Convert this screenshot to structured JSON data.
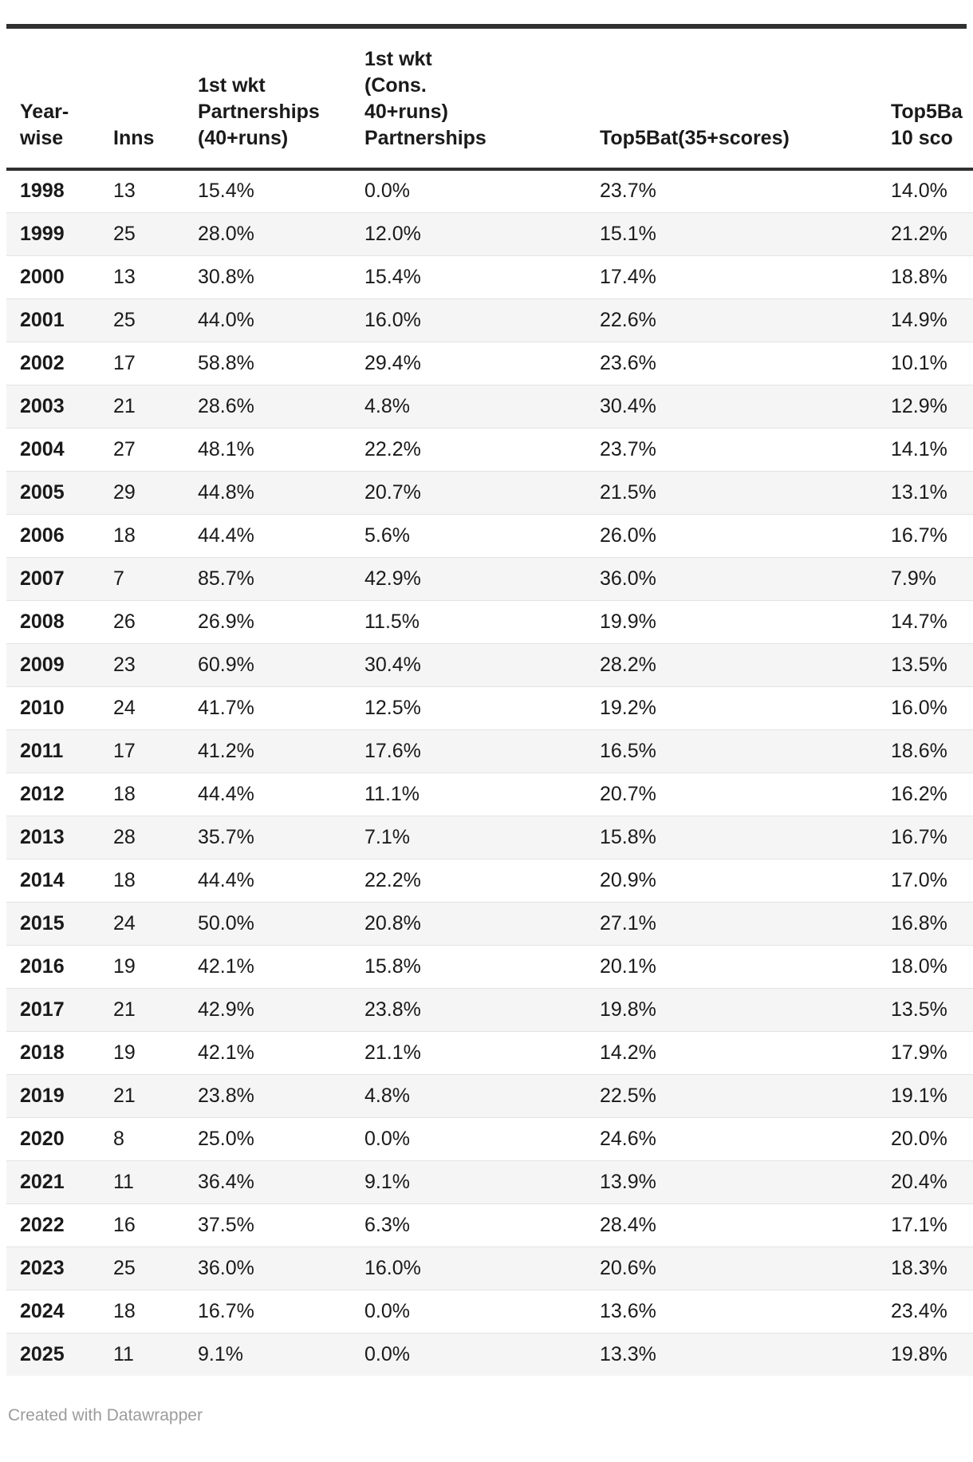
{
  "chart_data": {
    "type": "table",
    "title": "",
    "columns": [
      {
        "key": "year",
        "label": "Year-\nwise"
      },
      {
        "key": "inns",
        "label": "Inns"
      },
      {
        "key": "p40",
        "label": "1st wkt\nPartnerships\n(40+runs)"
      },
      {
        "key": "cons40",
        "label": "1st wkt\n(Cons.\n40+runs)\nPartnerships"
      },
      {
        "key": "top5bat35",
        "label": "Top5Bat(35+scores)"
      },
      {
        "key": "top5bat10",
        "label": "Top5Ba\n10 sco"
      }
    ],
    "rows": [
      {
        "year": "1998",
        "inns": "13",
        "p40": "15.4%",
        "cons40": "0.0%",
        "top5bat35": "23.7%",
        "top5bat10": "14.0%"
      },
      {
        "year": "1999",
        "inns": "25",
        "p40": "28.0%",
        "cons40": "12.0%",
        "top5bat35": "15.1%",
        "top5bat10": "21.2%"
      },
      {
        "year": "2000",
        "inns": "13",
        "p40": "30.8%",
        "cons40": "15.4%",
        "top5bat35": "17.4%",
        "top5bat10": "18.8%"
      },
      {
        "year": "2001",
        "inns": "25",
        "p40": "44.0%",
        "cons40": "16.0%",
        "top5bat35": "22.6%",
        "top5bat10": "14.9%"
      },
      {
        "year": "2002",
        "inns": "17",
        "p40": "58.8%",
        "cons40": "29.4%",
        "top5bat35": "23.6%",
        "top5bat10": "10.1%"
      },
      {
        "year": "2003",
        "inns": "21",
        "p40": "28.6%",
        "cons40": "4.8%",
        "top5bat35": "30.4%",
        "top5bat10": "12.9%"
      },
      {
        "year": "2004",
        "inns": "27",
        "p40": "48.1%",
        "cons40": "22.2%",
        "top5bat35": "23.7%",
        "top5bat10": "14.1%"
      },
      {
        "year": "2005",
        "inns": "29",
        "p40": "44.8%",
        "cons40": "20.7%",
        "top5bat35": "21.5%",
        "top5bat10": "13.1%"
      },
      {
        "year": "2006",
        "inns": "18",
        "p40": "44.4%",
        "cons40": "5.6%",
        "top5bat35": "26.0%",
        "top5bat10": "16.7%"
      },
      {
        "year": "2007",
        "inns": "7",
        "p40": "85.7%",
        "cons40": "42.9%",
        "top5bat35": "36.0%",
        "top5bat10": "7.9%"
      },
      {
        "year": "2008",
        "inns": "26",
        "p40": "26.9%",
        "cons40": "11.5%",
        "top5bat35": "19.9%",
        "top5bat10": "14.7%"
      },
      {
        "year": "2009",
        "inns": "23",
        "p40": "60.9%",
        "cons40": "30.4%",
        "top5bat35": "28.2%",
        "top5bat10": "13.5%"
      },
      {
        "year": "2010",
        "inns": "24",
        "p40": "41.7%",
        "cons40": "12.5%",
        "top5bat35": "19.2%",
        "top5bat10": "16.0%"
      },
      {
        "year": "2011",
        "inns": "17",
        "p40": "41.2%",
        "cons40": "17.6%",
        "top5bat35": "16.5%",
        "top5bat10": "18.6%"
      },
      {
        "year": "2012",
        "inns": "18",
        "p40": "44.4%",
        "cons40": "11.1%",
        "top5bat35": "20.7%",
        "top5bat10": "16.2%"
      },
      {
        "year": "2013",
        "inns": "28",
        "p40": "35.7%",
        "cons40": "7.1%",
        "top5bat35": "15.8%",
        "top5bat10": "16.7%"
      },
      {
        "year": "2014",
        "inns": "18",
        "p40": "44.4%",
        "cons40": "22.2%",
        "top5bat35": "20.9%",
        "top5bat10": "17.0%"
      },
      {
        "year": "2015",
        "inns": "24",
        "p40": "50.0%",
        "cons40": "20.8%",
        "top5bat35": "27.1%",
        "top5bat10": "16.8%"
      },
      {
        "year": "2016",
        "inns": "19",
        "p40": "42.1%",
        "cons40": "15.8%",
        "top5bat35": "20.1%",
        "top5bat10": "18.0%"
      },
      {
        "year": "2017",
        "inns": "21",
        "p40": "42.9%",
        "cons40": "23.8%",
        "top5bat35": "19.8%",
        "top5bat10": "13.5%"
      },
      {
        "year": "2018",
        "inns": "19",
        "p40": "42.1%",
        "cons40": "21.1%",
        "top5bat35": "14.2%",
        "top5bat10": "17.9%"
      },
      {
        "year": "2019",
        "inns": "21",
        "p40": "23.8%",
        "cons40": "4.8%",
        "top5bat35": "22.5%",
        "top5bat10": "19.1%"
      },
      {
        "year": "2020",
        "inns": "8",
        "p40": "25.0%",
        "cons40": "0.0%",
        "top5bat35": "24.6%",
        "top5bat10": "20.0%"
      },
      {
        "year": "2021",
        "inns": "11",
        "p40": "36.4%",
        "cons40": "9.1%",
        "top5bat35": "13.9%",
        "top5bat10": "20.4%"
      },
      {
        "year": "2022",
        "inns": "16",
        "p40": "37.5%",
        "cons40": "6.3%",
        "top5bat35": "28.4%",
        "top5bat10": "17.1%"
      },
      {
        "year": "2023",
        "inns": "25",
        "p40": "36.0%",
        "cons40": "16.0%",
        "top5bat35": "20.6%",
        "top5bat10": "18.3%"
      },
      {
        "year": "2024",
        "inns": "18",
        "p40": "16.7%",
        "cons40": "0.0%",
        "top5bat35": "13.6%",
        "top5bat10": "23.4%"
      },
      {
        "year": "2025",
        "inns": "11",
        "p40": "9.1%",
        "cons40": "0.0%",
        "top5bat35": "13.3%",
        "top5bat10": "19.8%"
      }
    ],
    "layout_hints": {
      "striped_rows": true,
      "header_rule_color": "#303030",
      "stripe_color": "#f5f5f5",
      "last_column_truncated_at_right_edge": true
    }
  },
  "footer": {
    "credit": "Created with Datawrapper"
  },
  "colors": {
    "rule": "#303030",
    "stripe": "#f5f5f5",
    "row_divider": "#e3e3e3",
    "text": "#1a1a1a",
    "credit_text": "#9c9c9c"
  }
}
